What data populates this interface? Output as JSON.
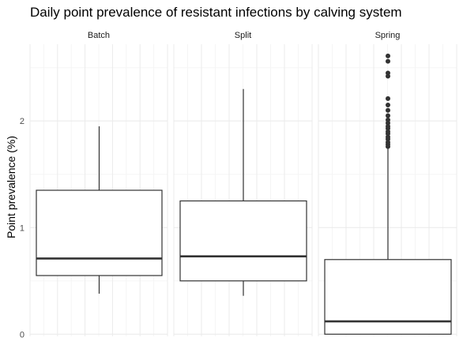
{
  "chart_data": {
    "type": "boxplot",
    "title": "Daily point prevalence of resistant infections by calving system",
    "ylabel": "Point prevalence (%)",
    "xlabel": "",
    "ylim": [
      -0.02,
      2.72
    ],
    "yticks": [
      0,
      1,
      2
    ],
    "grid": true,
    "facets": [
      "Batch",
      "Split",
      "Spring"
    ],
    "series": [
      {
        "facet": "Batch",
        "whisker_low": 0.38,
        "q1": 0.55,
        "median": 0.71,
        "q3": 1.35,
        "whisker_high": 1.95,
        "outliers": []
      },
      {
        "facet": "Split",
        "whisker_low": 0.36,
        "q1": 0.5,
        "median": 0.73,
        "q3": 1.25,
        "whisker_high": 2.3,
        "outliers": []
      },
      {
        "facet": "Spring",
        "whisker_low": 0.0,
        "q1": 0.0,
        "median": 0.12,
        "q3": 0.7,
        "whisker_high": 1.74,
        "outliers": [
          1.76,
          1.78,
          1.8,
          1.83,
          1.85,
          1.88,
          1.9,
          1.93,
          1.95,
          1.98,
          2.01,
          2.05,
          2.1,
          2.15,
          2.21,
          2.42,
          2.45,
          2.56,
          2.61
        ]
      }
    ]
  },
  "colors": {
    "box_line": "#333333",
    "grid_major": "#ebebeb",
    "grid_minor": "#f5f5f5",
    "background": "#ffffff"
  }
}
